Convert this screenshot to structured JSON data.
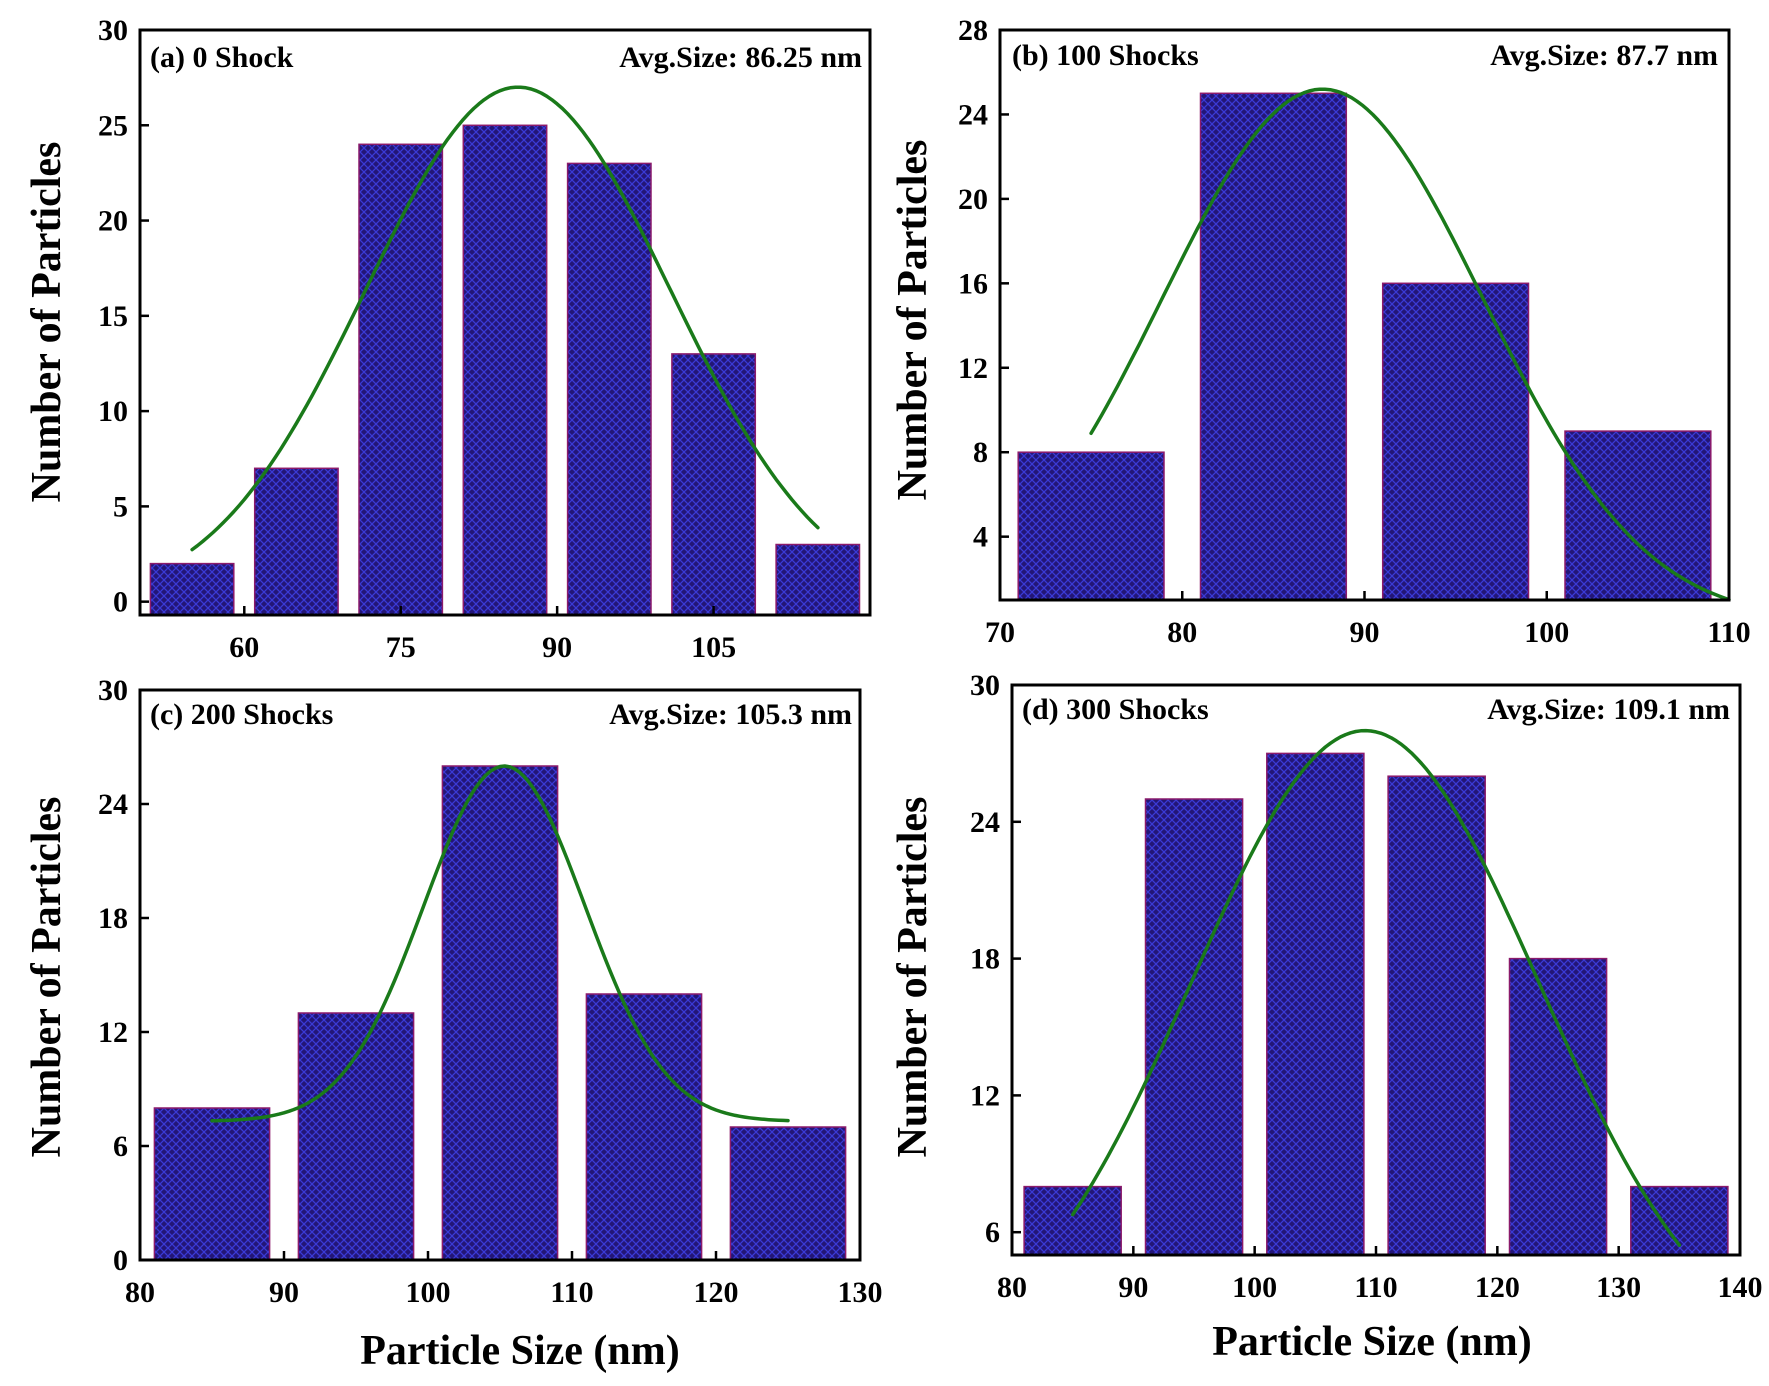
{
  "colors": {
    "bar": "#231677",
    "bar_hatch": "#3a3ad6",
    "bar_edge": "#8b1a6b",
    "fit_line": "#1a7a1a"
  },
  "chart_data": [
    {
      "type": "bar",
      "panel": "a",
      "title": "(a) 0 Shock",
      "annotation": "Avg.Size: 86.25 nm",
      "ylabel": "Number of Particles",
      "xlabel": "",
      "bar_width": 8,
      "categories": [
        55,
        65,
        75,
        85,
        95,
        105,
        115
      ],
      "values": [
        2,
        7,
        24,
        25,
        23,
        13,
        3
      ],
      "xlim": [
        50,
        120
      ],
      "ylim": [
        -0.7,
        30
      ],
      "xticks": [
        60,
        75,
        90,
        105
      ],
      "xtick_labels": [
        "60",
        "75",
        "90",
        "105"
      ],
      "yticks": [
        0,
        5,
        10,
        15,
        20,
        25,
        30
      ],
      "ytick_labels": [
        "0",
        "5",
        "10",
        "15",
        "20",
        "25",
        "30"
      ],
      "fit": {
        "type": "gaussian",
        "mean": 86.25,
        "sigma": 14.6,
        "amplitude": 27,
        "baseline": 0,
        "x_range": [
          55,
          115
        ]
      }
    },
    {
      "type": "bar",
      "panel": "b",
      "title": "(b) 100 Shocks",
      "annotation": "Avg.Size: 87.7 nm",
      "ylabel": "Number of Particles",
      "xlabel": "",
      "bar_width": 8,
      "categories": [
        75,
        85,
        95,
        105
      ],
      "values": [
        8,
        25,
        16,
        9
      ],
      "xlim": [
        70,
        110
      ],
      "ylim": [
        1,
        28
      ],
      "xticks": [
        70,
        80,
        90,
        100,
        110
      ],
      "xtick_labels": [
        "70",
        "80",
        "90",
        "100",
        "110"
      ],
      "yticks": [
        4,
        8,
        12,
        16,
        20,
        24,
        28
      ],
      "ytick_labels": [
        "4",
        "8",
        "12",
        "16",
        "20",
        "24",
        "28"
      ],
      "fit": {
        "type": "gaussian",
        "mean": 87.7,
        "sigma": 8.8,
        "amplitude": 25.2,
        "baseline": 0,
        "x_range": [
          75,
          110
        ]
      }
    },
    {
      "type": "bar",
      "panel": "c",
      "title": "(c) 200 Shocks",
      "annotation": "Avg.Size: 105.3 nm",
      "ylabel": "Number of Particles",
      "xlabel": "Particle Size (nm)",
      "bar_width": 8,
      "categories": [
        85,
        95,
        105,
        115,
        125
      ],
      "values": [
        8,
        13,
        26,
        14,
        7
      ],
      "xlim": [
        80,
        130
      ],
      "ylim": [
        0,
        30
      ],
      "xticks": [
        80,
        90,
        100,
        110,
        120,
        130
      ],
      "xtick_labels": [
        "80",
        "90",
        "100",
        "110",
        "120",
        "130"
      ],
      "yticks": [
        0,
        6,
        12,
        18,
        24,
        30
      ],
      "ytick_labels": [
        "0",
        "6",
        "12",
        "18",
        "24",
        "30"
      ],
      "fit": {
        "type": "gaussian",
        "mean": 105.3,
        "sigma": 5.6,
        "amplitude": 18.7,
        "baseline": 7.3,
        "x_range": [
          85,
          125
        ]
      }
    },
    {
      "type": "bar",
      "panel": "d",
      "title": "(d) 300 Shocks",
      "annotation": "Avg.Size: 109.1 nm",
      "ylabel": "Number of Particles",
      "xlabel": "Particle Size (nm)",
      "bar_width": 8,
      "categories": [
        85,
        95,
        105,
        115,
        125,
        135
      ],
      "values": [
        8,
        25,
        27,
        26,
        18,
        8
      ],
      "xlim": [
        80,
        140
      ],
      "ylim": [
        5,
        30
      ],
      "xticks": [
        80,
        90,
        100,
        110,
        120,
        130,
        140
      ],
      "xtick_labels": [
        "80",
        "90",
        "100",
        "110",
        "120",
        "130",
        "140"
      ],
      "yticks": [
        6,
        12,
        18,
        24,
        30
      ],
      "ytick_labels": [
        "6",
        "12",
        "18",
        "24",
        "30"
      ],
      "fit": {
        "type": "gaussian",
        "mean": 109.1,
        "sigma": 14.3,
        "amplitude": 28,
        "baseline": 0,
        "x_range": [
          85,
          135
        ]
      }
    }
  ]
}
